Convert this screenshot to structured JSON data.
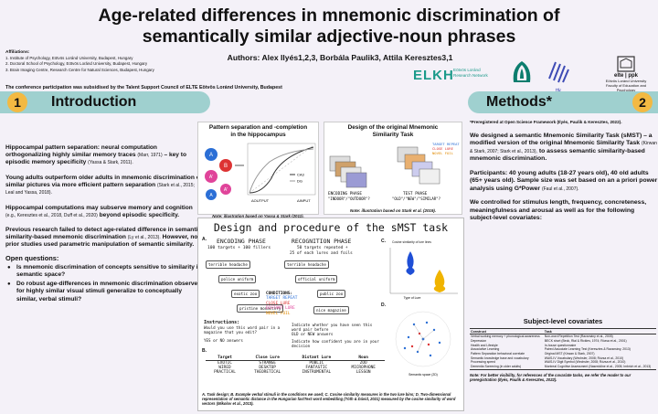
{
  "title": {
    "line1": "Age-related differences in mnemonic discrimination of",
    "line2": "semantically similar adjective-noun phrases"
  },
  "affiliations": {
    "heading": "Affiliations:",
    "items": [
      "1. Institute of Psychology, Eötvös Loránd University, Budapest, Hungary",
      "2. Doctoral School of Psychology, Eötvös Loránd University, Budapest, Hungary",
      "3. Brain Imaging Centre, Research Centre for Natural Sciences, Budapest, Hungary"
    ]
  },
  "authors": "Authors: Alex Ilyés1,2,3, Borbála Paulik3, Attila Keresztes3,1",
  "subsidy": "The conference participation was subsidised by the Talent Support Council of ELTE Eötvös Loránd University, Budapest",
  "logos": {
    "elkh_mark": "ELKH",
    "elkh_text1": "Eötvös Loránd",
    "elkh_text2": "Research Network",
    "hcccl": "HCCCL",
    "ttk": "ttk",
    "elte_mark": "elte | ppk",
    "elte_text1": "Eötvös Loránd University",
    "elte_text2": "Faculty of Education and Psychology"
  },
  "sections": {
    "intro": {
      "number": "1",
      "title": "Introduction"
    },
    "methods": {
      "number": "2",
      "title": "Methods*"
    }
  },
  "intro": {
    "p1": "Hippocampal pattern separation: neural computation orthogonalizing highly similar memory traces",
    "p1_cite": "(Marr, 1971)",
    "p1_end": "– key to episodic memory specificity",
    "p1_cite2": "(Yassa & Stark, 2011).",
    "p2": "Young adults outperform older adults in mnemonic discrimination of similar pictures via more efficient pattern separation",
    "p2_cite": "(Stark et al., 2015; Leal and Yassa, 2018).",
    "p3": "Hippocampal computations may subserve memory and cognition",
    "p3_cite": "(e.g., Keresztes et al., 2018, Duff et al., 2020)",
    "p3_end": "beyond episodic specificity.",
    "p4": "Previous research failed to detect age-related difference in semantic similarity-based mnemonic discrimination",
    "p4_cite": "(Ly et al., 2013).",
    "p4_end": "However, no prior studies used parametric manipulation of semantic similarity.",
    "oq_title": "Open questions:",
    "oq1": "Is mnemonic discrimination of concepts sensitive to similarity in semantic space?",
    "oq2": "Do robust age-differences in mnemonic discrimination observed for highly similar visual stimuli generalize to conceptually similar, verbal stimuli?"
  },
  "fig1": {
    "title1": "Pattern separation and -completion",
    "title2": "in the hippocampus",
    "note": "Note: illustration based on Yassa & Stark (2011).",
    "legend": [
      "CA3",
      "DG"
    ],
    "axis_x": "ΔINPUT",
    "axis_y": "ΔOUTPUT",
    "nodes": [
      "A",
      "B",
      "A'",
      "A",
      "A'",
      "B"
    ]
  },
  "fig2": {
    "title1": "Design of the original Mnemonic",
    "title2": "Similarity Task",
    "enc_label": "ENCODING PHASE",
    "enc_sub": "\"INDOOR\"/\"OUTDOOR\"?",
    "test_label": "TEST PHASE",
    "test_sub": "\"OLD\"/\"NEW\"/\"SIMILAR\"?",
    "note": "Note: illustration based on Stark et al. (2019).",
    "legend": [
      "TARGET REPEAT",
      "CLOSE LURE",
      "NOVEL FOIL"
    ]
  },
  "design": {
    "title": "Design and procedure of the sMST task",
    "panelA": "A.",
    "enc_phase": "ENCODING PHASE",
    "enc_sub": "100 targets + 100 fillers",
    "rec_phase": "RECOGNITION PHASE",
    "rec_sub1": "50 targets repeated +",
    "rec_sub2": "25 of each lures and foils",
    "enc_cards": [
      "terrible headache",
      "police uniform",
      "exotic zoo",
      "pristine monastery"
    ],
    "rec_cards": [
      "terrible headache",
      "official uniform",
      "public zoo",
      "nice magazine"
    ],
    "conditions_title": "CONDITIONS:",
    "conditions": [
      "TARGET REPEAT",
      "CLOSE LURE",
      "DISTANT LURE",
      "NOVEL FOIL"
    ],
    "instr_title": "Instructions:",
    "instr1": "Would you use this word pair in a magazine that you edit?",
    "instr2": "YES or NO answers",
    "rec_instr1": "Indicate whether you have seen this word pair before",
    "rec_instr2": "OLD or NEW answers",
    "rec_instr3": "Indicate how confident you are in your decision",
    "panelB": "B.",
    "table_headers": [
      "Target",
      "Close Lure",
      "Distant Lure",
      "Noun"
    ],
    "table_rows": [
      [
        "EXOTIC",
        "STRANGE",
        "PUBLIC",
        "ZOO"
      ],
      [
        "WIRED",
        "DESKTOP",
        "FANTASTIC",
        "MICROPHONE"
      ],
      [
        "PRACTICAL",
        "THEORETICAL",
        "INSTRUMENTAL",
        "LESSON"
      ]
    ],
    "panelC": "C.",
    "panelD": "D.",
    "c_title": "Cosine similarity of lure lines",
    "c_xlabel": "Type of Lure",
    "d_label": "Semantic space (2D)",
    "caption": "A. Task design; B. Example verbal stimuli in the conditions we used; C. Cosine similarity measures in the two lure bins; D. Two-dimensional representation of semantic distance in the Hungarian fastText word embedding (Tóth & Dávid, 2021) measured by the cosine similarity of word vectors (Mikolov et al., 2013)."
  },
  "methods": {
    "prereg": "*Preregistered at Open Science Framework (Ilyés, Paulik & Keresztes, 2022).",
    "p1": "We designed a semantic Mnemonic Similarity Task (sMST) – a modified version of the original Mnemonic Similarity Task",
    "p1_cite": "(Kirwan & Stark, 2007; Stark et al., 2013),",
    "p1_end": "to assess semantic similarity-based mnemonic discrimination.",
    "p2": "Participants: 40 young adults (18-27 years old), 40 old adults (65+ years old). Sample size was set based on an a priori power analysis using G*Power",
    "p2_cite": "(Faul et al., 2007).",
    "p3": "We controlled for stimulus length, frequency, concreteness, meaningfulness and arousal as well as for the following subject-level covariates:"
  },
  "covariates": {
    "title": "Subject-level covariates",
    "headers": [
      "Construct",
      "Task"
    ],
    "rows": [
      [
        "Verbal working memory + phonological awareness",
        "Non-word Repetition Test (Racsmány et al., 2005)"
      ],
      [
        "Depression",
        "BECK short (Beck, Rial & Rickles, 1974; Rózsa et al., 2001)"
      ],
      [
        "Health and Lifestyle",
        "In-house questionnaire"
      ],
      [
        "Associative Learning",
        "Paired Associate Learning Test (Keresztes & Racsmány, 2013)"
      ],
      [
        "Pattern Separation behavioral correlate",
        "Original MST (Kirwan & Stark, 2007)"
      ],
      [
        "Semantic knowledge base and vocabulary",
        "WAIS-IV Vocabulary (Wechsler, 2008; Rózsa et al., 2010)"
      ],
      [
        "Processing speed",
        "WAIS-IV Digit Symbol (Wechsler, 2008; Rózsa et al., 2010)"
      ],
      [
        "Dementia Screening (in older adults)",
        "Montreal Cognitive Assessment (Nasreddine et al., 2005; Imbrich et al., 2013)"
      ]
    ],
    "note": "Note: For better visibility, for references of the covariate tasks, we refer the reader to our preregistration (Ilyés, Paulik & Keresztes, 2022)."
  },
  "colors": {
    "header_bar": "#9fd0cf",
    "badge": "#f3b942",
    "accent_teal": "#1b9a8a",
    "lure_red": "#d33",
    "lure_pink": "#e0449a",
    "target_blue": "#2b6fd6"
  }
}
